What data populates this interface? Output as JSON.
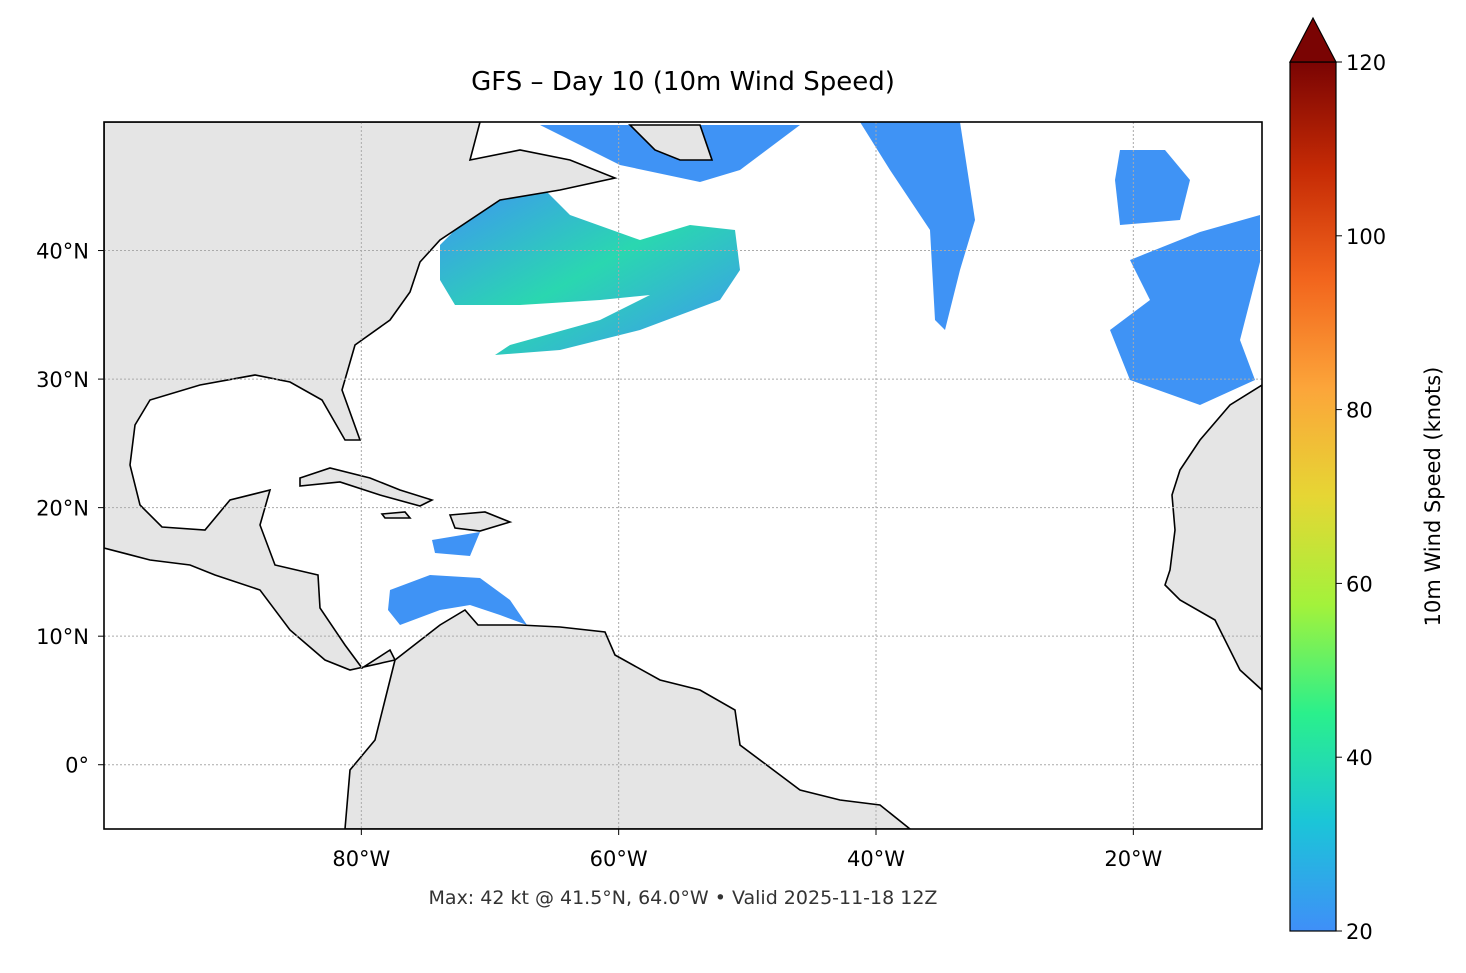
{
  "chart_data": {
    "type": "map",
    "title": "GFS – Day 10 (10m Wind Speed)",
    "footnote": "Max: 42 kt @ 41.5°N, 64.0°W • Valid 2025-11-18 12Z",
    "xlim": [
      -100,
      -10
    ],
    "ylim": [
      -5,
      50
    ],
    "xticks": [
      {
        "value": -80,
        "label": "80°W"
      },
      {
        "value": -60,
        "label": "60°W"
      },
      {
        "value": -40,
        "label": "40°W"
      },
      {
        "value": -20,
        "label": "20°W"
      }
    ],
    "yticks": [
      {
        "value": 0,
        "label": "0°"
      },
      {
        "value": 10,
        "label": "10°N"
      },
      {
        "value": 20,
        "label": "20°N"
      },
      {
        "value": 30,
        "label": "30°N"
      },
      {
        "value": 40,
        "label": "40°N"
      }
    ],
    "grid": true,
    "colorbar": {
      "label": "10m Wind Speed (knots)",
      "lim": [
        20,
        120
      ],
      "ticks": [
        20,
        40,
        60,
        80,
        100,
        120
      ],
      "extend": "max",
      "colors": [
        "#3f8ff8",
        "#1bc5d8",
        "#2af08c",
        "#a3f23b",
        "#e6d634",
        "#fca53a",
        "#f2651d",
        "#c62b05",
        "#7a0403"
      ]
    }
  }
}
